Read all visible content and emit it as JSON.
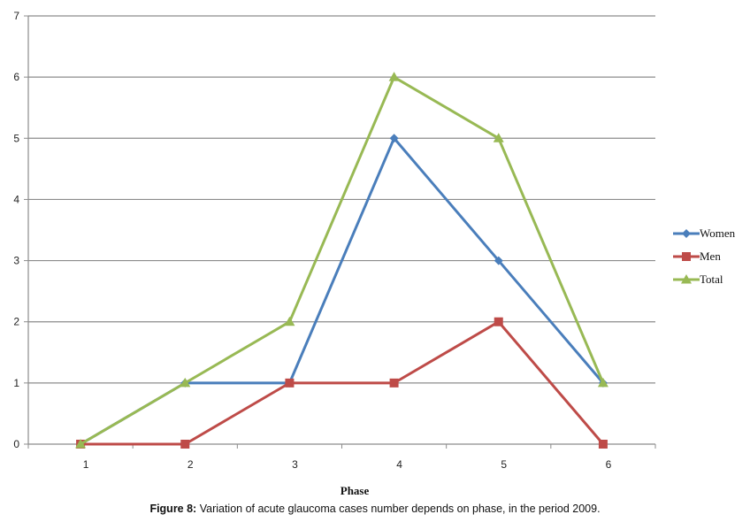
{
  "chart_data": {
    "type": "line",
    "title": "",
    "xlabel": "Phase",
    "ylabel": "",
    "x": [
      1,
      2,
      3,
      4,
      5,
      6
    ],
    "ylim": [
      0,
      7
    ],
    "yticks": [
      0,
      1,
      2,
      3,
      4,
      5,
      6,
      7
    ],
    "grid": true,
    "legend_position": "right",
    "series": [
      {
        "name": "Women",
        "values": [
          0,
          1,
          1,
          5,
          3,
          1
        ],
        "color": "#4a7ebb",
        "marker": "diamond"
      },
      {
        "name": "Men",
        "values": [
          0,
          0,
          1,
          1,
          2,
          0
        ],
        "color": "#be4b48",
        "marker": "square"
      },
      {
        "name": "Total",
        "values": [
          0,
          1,
          2,
          6,
          5,
          1
        ],
        "color": "#98b954",
        "marker": "triangle"
      }
    ]
  },
  "caption": {
    "label": "Figure 8:",
    "text": " Variation of acute glaucoma cases number depends on phase, in the period 2009."
  }
}
